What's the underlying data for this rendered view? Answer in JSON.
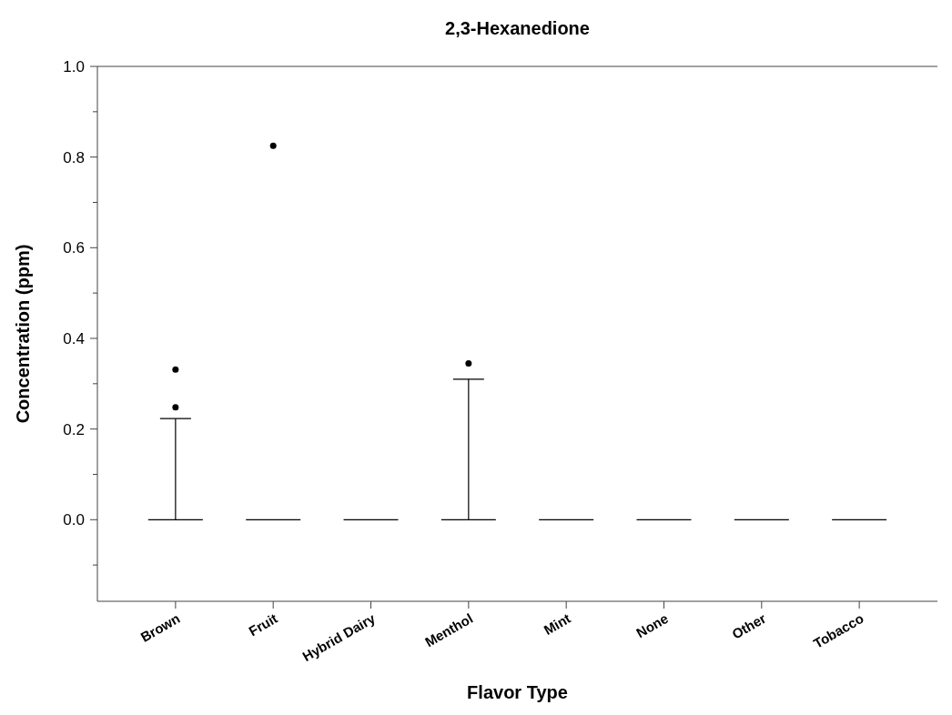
{
  "chart_data": {
    "type": "box",
    "title": "2,3-Hexanedione",
    "xlabel": "Flavor Type",
    "ylabel": "Concentration (ppm)",
    "categories": [
      "Brown",
      "Fruit",
      "Hybrid Dairy",
      "Menthol",
      "Mint",
      "None",
      "Other",
      "Tobacco"
    ],
    "boxes": [
      {
        "low": 0,
        "q1": 0,
        "median": 0,
        "q3": 0,
        "high": 0.223,
        "outliers": [
          0.248,
          0.331
        ]
      },
      {
        "low": 0,
        "q1": 0,
        "median": 0,
        "q3": 0,
        "high": 0,
        "outliers": [
          0.825
        ]
      },
      {
        "low": 0,
        "q1": 0,
        "median": 0,
        "q3": 0,
        "high": 0
      },
      {
        "low": 0,
        "q1": 0,
        "median": 0,
        "q3": 0,
        "high": 0.31,
        "outliers": [
          0.345
        ]
      },
      {
        "low": 0,
        "q1": 0,
        "median": 0,
        "q3": 0,
        "high": 0
      },
      {
        "low": 0,
        "q1": 0,
        "median": 0,
        "q3": 0,
        "high": 0
      },
      {
        "low": 0,
        "q1": 0,
        "median": 0,
        "q3": 0,
        "high": 0
      },
      {
        "low": 0,
        "q1": 0,
        "median": 0,
        "q3": 0,
        "high": 0
      }
    ],
    "ylim": [
      -0.18,
      1.0
    ],
    "yticks": [
      {
        "value": -0.1,
        "label": null
      },
      "0.0",
      {
        "value": 0.1,
        "label": null
      },
      0.2,
      {
        "value": 0.3,
        "label": null
      },
      0.4,
      {
        "value": 0.5,
        "label": null
      },
      0.6,
      {
        "value": 0.7,
        "label": null
      },
      0.8,
      {
        "value": 0.9,
        "label": null
      },
      "1.0"
    ],
    "color": "#000000"
  }
}
